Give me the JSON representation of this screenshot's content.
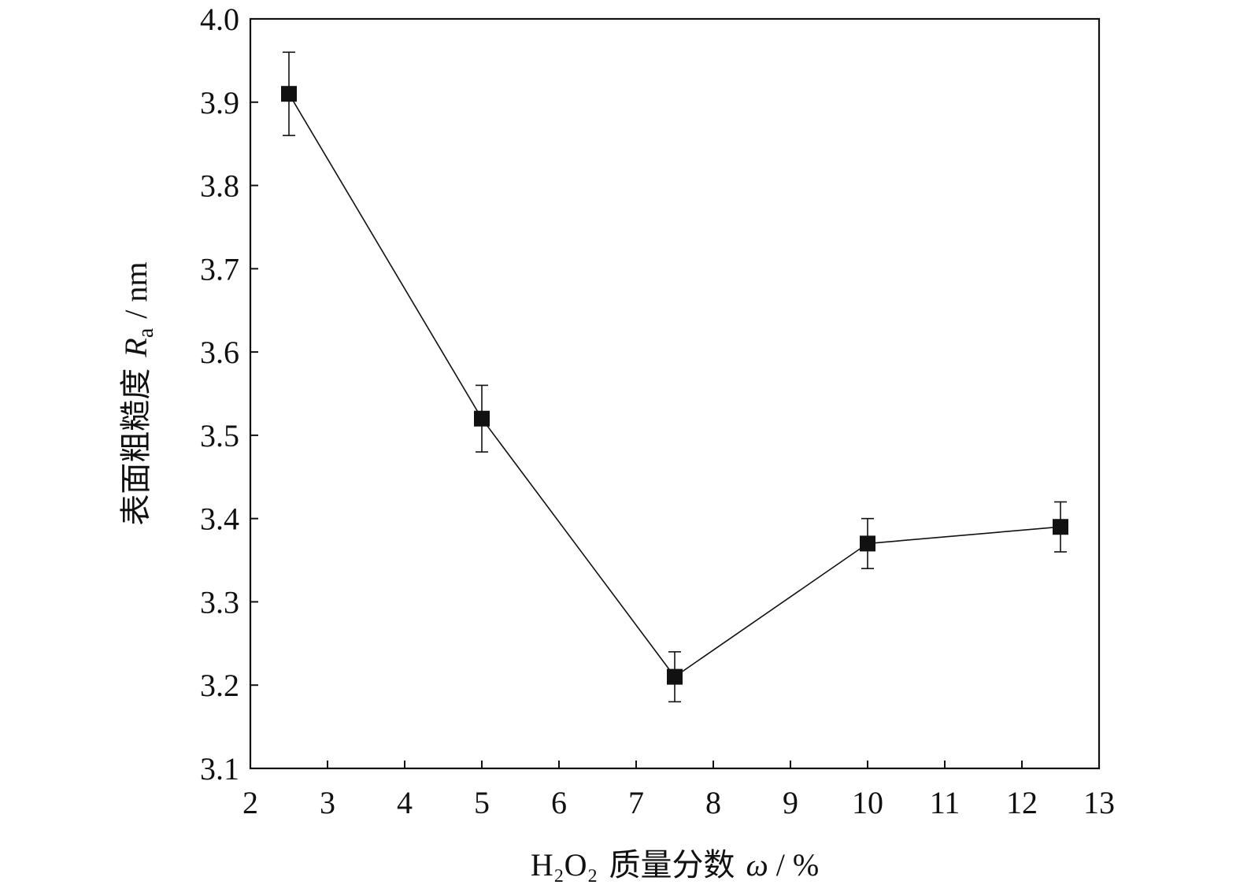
{
  "chart_data": {
    "type": "line",
    "x_axis": {
      "label_formula": "H₂O₂",
      "label_text": "质量分数",
      "label_symbol": "ω",
      "label_unit": "%",
      "range": [
        2,
        13
      ],
      "ticks": [
        2,
        3,
        4,
        5,
        6,
        7,
        8,
        9,
        10,
        11,
        12,
        13
      ]
    },
    "y_axis": {
      "label_text": "表面粗糙度",
      "label_symbol": "R",
      "label_subscript": "a",
      "label_unit": "nm",
      "range": [
        3.1,
        4.0
      ],
      "ticks": [
        "3.1",
        "3.2",
        "3.3",
        "3.4",
        "3.5",
        "3.6",
        "3.7",
        "3.8",
        "3.9",
        "4.0"
      ]
    },
    "grid": false,
    "legend": "none",
    "series": [
      {
        "marker": "square",
        "color": "#111111",
        "points": [
          {
            "x": 2.5,
            "y": 3.91,
            "error": 0.05
          },
          {
            "x": 5.0,
            "y": 3.52,
            "error": 0.04
          },
          {
            "x": 7.5,
            "y": 3.21,
            "error": 0.03
          },
          {
            "x": 10.0,
            "y": 3.37,
            "error": 0.03
          },
          {
            "x": 12.5,
            "y": 3.39,
            "error": 0.03
          }
        ]
      }
    ]
  }
}
